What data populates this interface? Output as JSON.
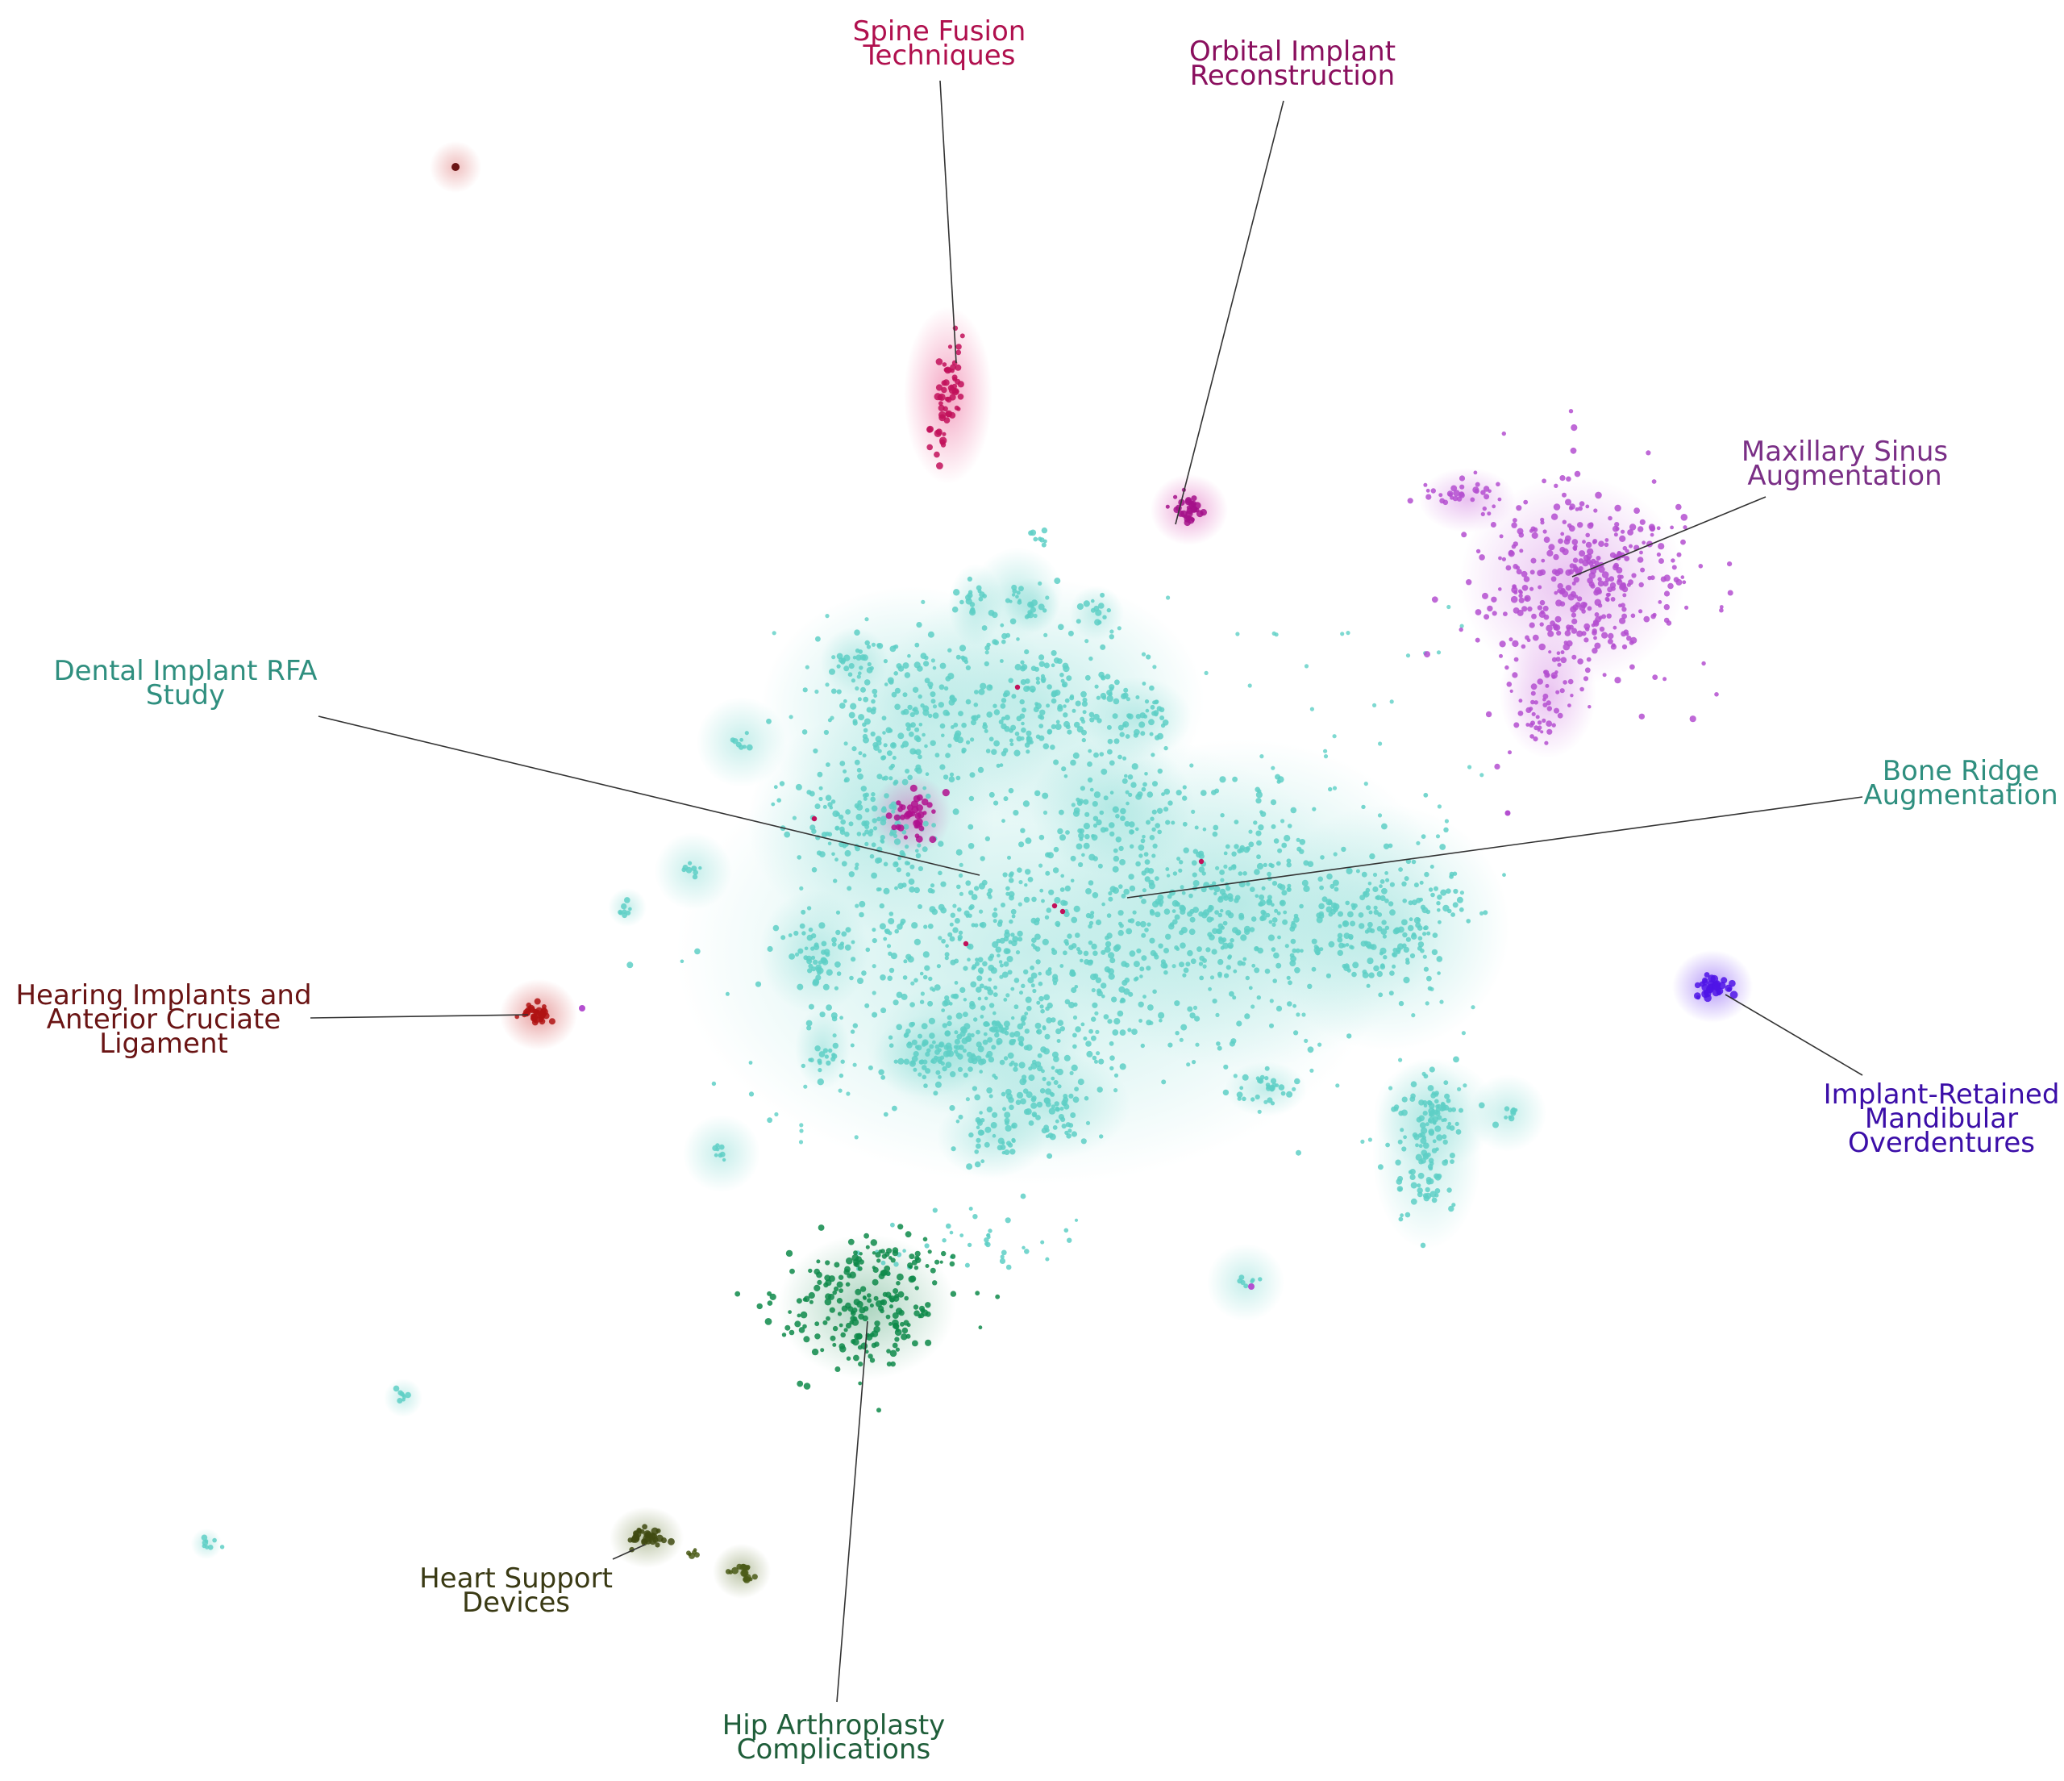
{
  "clusters": [
    {
      "id": "spine-fusion",
      "lines": [
        "Spine Fusion",
        "Techniques"
      ],
      "color": "#b0104e",
      "glow": "#e8387a"
    },
    {
      "id": "orbital-implant",
      "lines": [
        "Orbital Implant",
        "Reconstruction"
      ],
      "color": "#8a0f5e",
      "glow": "#d63aa8"
    },
    {
      "id": "maxillary-sinus",
      "lines": [
        "Maxillary Sinus",
        "Augmentation"
      ],
      "color": "#7a2f86",
      "glow": "#c14fd6"
    },
    {
      "id": "dental-implant-rfa",
      "lines": [
        "Dental Implant RFA",
        "Study"
      ],
      "color": "#2f8f7f",
      "glow": "#5ecfc6"
    },
    {
      "id": "bone-ridge",
      "lines": [
        "Bone Ridge",
        "Augmentation"
      ],
      "color": "#2f8f7f",
      "glow": "#5ecfc6"
    },
    {
      "id": "hearing-implants",
      "lines": [
        "Hearing Implants and",
        "Anterior Cruciate",
        "Ligament"
      ],
      "color": "#6a1414",
      "glow": "#cc2b2b"
    },
    {
      "id": "implant-retained",
      "lines": [
        "Implant-Retained",
        "Mandibular",
        "Overdentures"
      ],
      "color": "#3b0ea8",
      "glow": "#5a1cf0"
    },
    {
      "id": "heart-support",
      "lines": [
        "Heart Support",
        "Devices"
      ],
      "color": "#3a3a14",
      "glow": "#556b1e"
    },
    {
      "id": "hip-arthroplasty",
      "lines": [
        "Hip Arthroplasty",
        "Complications"
      ],
      "color": "#1f5e3a",
      "glow": "#11864a"
    }
  ]
}
